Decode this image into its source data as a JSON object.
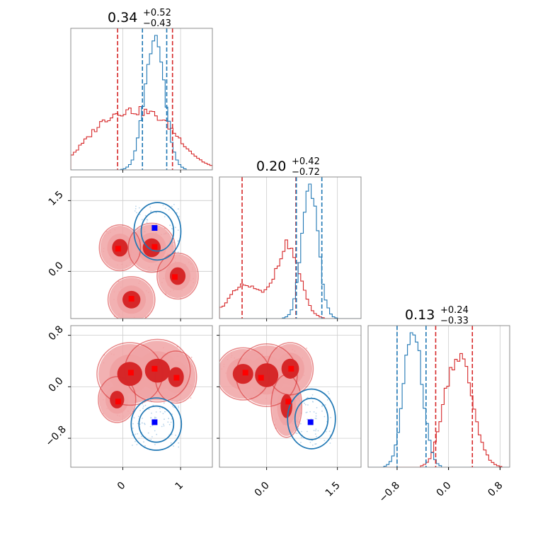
{
  "colors": {
    "red": "#d62728",
    "red_fill_light": "#f0a3a4",
    "red_fill_dark": "#d62728",
    "blue": "#1f77b4",
    "grid": "#cccccc",
    "marker_red": "#ff0000",
    "marker_blue": "#0000ff"
  },
  "chart_data": {
    "type": "corner",
    "grid": true,
    "params": [
      {
        "title": {
          "median": "0.34",
          "upper": "+0.52",
          "lower": "−0.43"
        },
        "range": [
          -0.9,
          1.55
        ],
        "ticks": [
          {
            "v": 0,
            "label": "0"
          },
          {
            "v": 1,
            "label": "1"
          }
        ],
        "quantiles": {
          "red": [
            -0.09,
            0.86
          ],
          "blue": [
            0.34,
            0.76
          ]
        }
      },
      {
        "title": {
          "median": "0.20",
          "upper": "+0.42",
          "lower": "−0.72"
        },
        "range": [
          -1.0,
          2.0
        ],
        "ticks": [
          {
            "v": 0,
            "label": "0.0"
          },
          {
            "v": 1.5,
            "label": "1.5"
          }
        ],
        "quantiles": {
          "red": [
            -0.52,
            0.62
          ],
          "blue": [
            0.63,
            1.17
          ]
        }
      },
      {
        "title": {
          "median": "0.13",
          "upper": "+0.24",
          "lower": "−0.33"
        },
        "range": [
          -1.25,
          0.95
        ],
        "ticks": [
          {
            "v": -0.8,
            "label": "−0.8"
          },
          {
            "v": 0,
            "label": "0.0"
          },
          {
            "v": 0.8,
            "label": "0.8"
          }
        ],
        "quantiles": {
          "red": [
            -0.2,
            0.37
          ],
          "blue": [
            -0.8,
            -0.35
          ]
        }
      }
    ],
    "markers": {
      "p1_p2": {
        "red": [
          [
            -0.08,
            0.48
          ],
          [
            0.55,
            0.52
          ],
          [
            0.9,
            -0.12
          ],
          [
            0.15,
            -0.58
          ]
        ],
        "blue": [
          [
            0.55,
            0.92
          ]
        ]
      },
      "p1_p3": {
        "red": [
          [
            0.14,
            0.22
          ],
          [
            0.55,
            0.28
          ],
          [
            0.93,
            0.14
          ],
          [
            -0.08,
            -0.23
          ]
        ],
        "blue": [
          [
            0.55,
            -0.55
          ]
        ]
      },
      "p2_p3": {
        "red": [
          [
            -0.45,
            0.22
          ],
          [
            -0.12,
            0.14
          ],
          [
            0.52,
            0.28
          ],
          [
            0.46,
            -0.23
          ]
        ],
        "blue": [
          [
            0.93,
            -0.55
          ]
        ]
      }
    }
  }
}
